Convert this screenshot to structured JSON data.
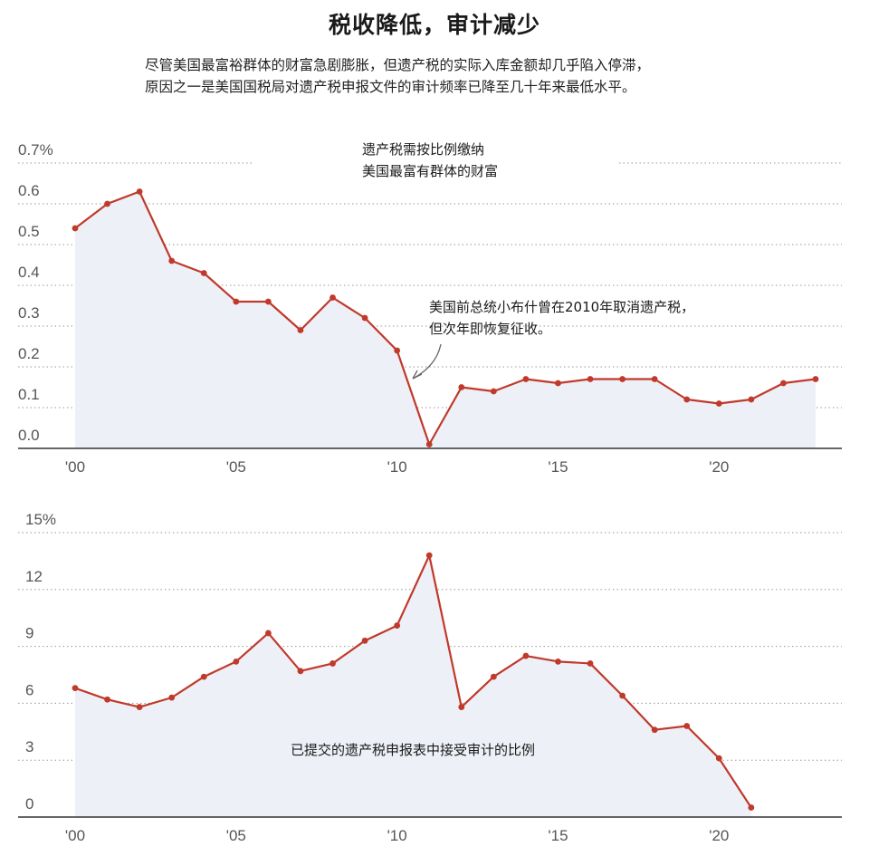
{
  "title": "税收降低，审计减少",
  "subtitle": [
    "尽管美国最富裕群体的财富急剧膨胀，但遗产税的实际入库金额却几乎陷入停滞，",
    "原因之一是美国国税局对遗产税申报文件的审计频率已降至几十年来最低水平。"
  ],
  "colors": {
    "line": "#c0392b",
    "area": "#eef0f7",
    "grid": "#999999",
    "axis": "#333333"
  },
  "chart_data": [
    {
      "type": "area",
      "x": [
        2000,
        2001,
        2002,
        2003,
        2004,
        2005,
        2006,
        2007,
        2008,
        2009,
        2010,
        2011,
        2012,
        2013,
        2014,
        2015,
        2016,
        2017,
        2018,
        2019,
        2020,
        2021,
        2022,
        2023
      ],
      "values": [
        0.54,
        0.6,
        0.63,
        0.46,
        0.43,
        0.36,
        0.36,
        0.29,
        0.37,
        0.32,
        0.24,
        0.01,
        0.15,
        0.14,
        0.17,
        0.16,
        0.17,
        0.17,
        0.17,
        0.12,
        0.11,
        0.12,
        0.16,
        0.17
      ],
      "y_ticks": [
        "0.7%",
        "0.6",
        "0.5",
        "0.4",
        "0.3",
        "0.2",
        "0.1",
        "0.0"
      ],
      "y_tick_values": [
        0.7,
        0.6,
        0.5,
        0.4,
        0.3,
        0.2,
        0.1,
        0.0
      ],
      "x_ticks": [
        "'00",
        "'05",
        "'10",
        "'15",
        "'20"
      ],
      "x_tick_values": [
        2000,
        2005,
        2010,
        2015,
        2020
      ],
      "ylim": [
        0,
        0.7
      ],
      "label": [
        "遗产税需按比例缴纳",
        "美国最富有群体的财富"
      ],
      "annotation": [
        "美国前总统小布什曾在2010年取消遗产税，",
        "但次年即恢复征收。"
      ],
      "grid": true
    },
    {
      "type": "area",
      "x": [
        2000,
        2001,
        2002,
        2003,
        2004,
        2005,
        2006,
        2007,
        2008,
        2009,
        2010,
        2011,
        2012,
        2013,
        2014,
        2015,
        2016,
        2017,
        2018,
        2019,
        2020,
        2021
      ],
      "values": [
        6.8,
        6.2,
        5.8,
        6.3,
        7.4,
        8.2,
        9.7,
        7.7,
        8.1,
        9.3,
        10.1,
        13.8,
        5.8,
        7.4,
        8.5,
        8.2,
        8.1,
        6.4,
        4.6,
        4.8,
        3.1,
        0.5
      ],
      "y_ticks": [
        "15%",
        "12",
        "9",
        "6",
        "3",
        "0"
      ],
      "y_tick_values": [
        15,
        12,
        9,
        6,
        3,
        0
      ],
      "x_ticks": [
        "'00",
        "'05",
        "'10",
        "'15",
        "'20"
      ],
      "x_tick_values": [
        2000,
        2005,
        2010,
        2015,
        2020
      ],
      "ylim": [
        0,
        15
      ],
      "label": [
        "已提交的遗产税申报表中接受审计的比例"
      ],
      "grid": true
    }
  ]
}
